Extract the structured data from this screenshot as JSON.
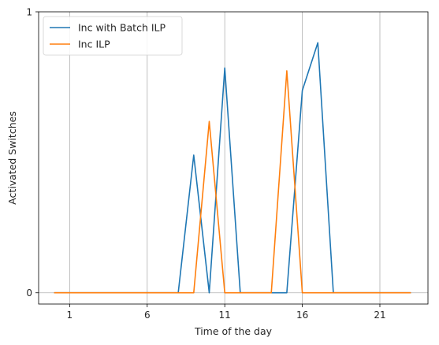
{
  "chart_data": {
    "type": "line",
    "title": "",
    "xlabel": "Time of the day",
    "ylabel": "Activated Switches",
    "xlim": [
      -1,
      24.1
    ],
    "ylim": [
      -0.04,
      1.0
    ],
    "xticks": [
      1,
      6,
      11,
      16,
      21
    ],
    "xtick_labels": [
      "1",
      "6",
      "11",
      "16",
      "21"
    ],
    "yticks": [
      0,
      1
    ],
    "ytick_labels": [
      "0",
      "1"
    ],
    "grid": "x",
    "legend_position": "top-left",
    "x": [
      0,
      1,
      2,
      3,
      4,
      5,
      6,
      7,
      8,
      9,
      10,
      11,
      12,
      13,
      14,
      15,
      16,
      17,
      18,
      19,
      20,
      21,
      22,
      23
    ],
    "series": [
      {
        "name": "Inc with Batch ILP",
        "color": "#1f77b4",
        "values": [
          0,
          0,
          0,
          0,
          0,
          0,
          0,
          0,
          0,
          0.49,
          0,
          0.8,
          0,
          0,
          0,
          0,
          0.72,
          0.89,
          0,
          0,
          0,
          0,
          0,
          0
        ]
      },
      {
        "name": "Inc ILP",
        "color": "#ff7f0e",
        "values": [
          0,
          0,
          0,
          0,
          0,
          0,
          0,
          0,
          0,
          0,
          0.61,
          0,
          0,
          0,
          0,
          0.79,
          0,
          0,
          0,
          0,
          0,
          0,
          0,
          0
        ]
      }
    ]
  }
}
